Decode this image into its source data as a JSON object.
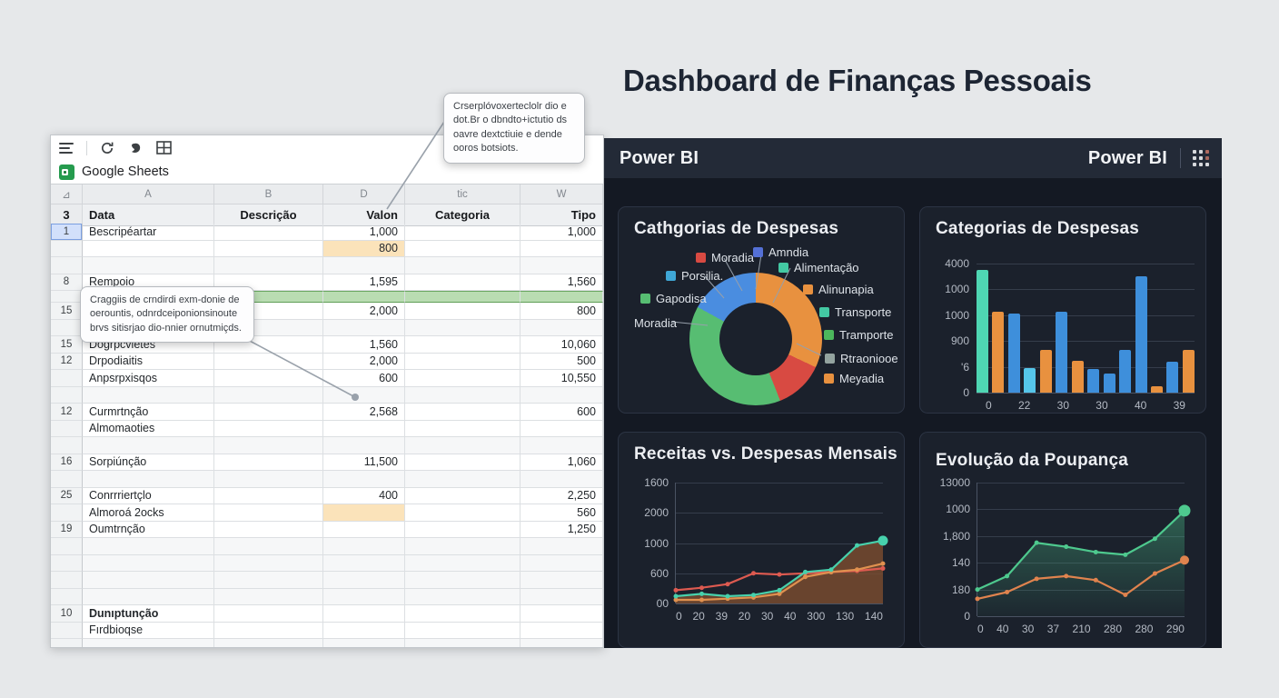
{
  "page": {
    "title": "Dashboard de Finanças Pessoais"
  },
  "sheet": {
    "brand": "Google Sheets",
    "column_letters": [
      "⊿",
      "A",
      "B",
      "D",
      "tic",
      "W"
    ],
    "header_row": {
      "num": "3",
      "cells": [
        "Data",
        "Descrição",
        "Valon",
        "Categoria",
        "Tipo"
      ]
    },
    "rows": [
      {
        "n": "1",
        "a": "Bescripéartar",
        "v": "1,000",
        "t": "1,000",
        "sel": true
      },
      {
        "v": "800",
        "vo": true
      },
      {},
      {
        "n": "8",
        "a": "Rempoio",
        "v": "1,595",
        "t": "1,560"
      },
      {
        "g": true
      },
      {
        "n": "15",
        "a": "",
        "v": "2,000",
        "t": "800"
      },
      {},
      {
        "n": "15",
        "a": "Dogrpcvietes",
        "v": "1,560",
        "t": "10,060"
      },
      {
        "n": "12",
        "a": "Drpodiaitis",
        "v": "2,000",
        "t": "500"
      },
      {
        "a": "Anpsrpxisqos",
        "v": "600",
        "t": "10,550"
      },
      {},
      {
        "n": "12",
        "a": "Curmrtnção",
        "v": "2,568",
        "t": "600"
      },
      {
        "a": "Almomaoties"
      },
      {},
      {
        "n": "16",
        "a": "Sorpiúnção",
        "v": "11,500",
        "t": "1,060"
      },
      {},
      {
        "n": "25",
        "a": "Conrrriertçlo",
        "v": "400",
        "t": "2,250"
      },
      {
        "a": "Almoroá 2ocks",
        "vo": true,
        "t": "560"
      },
      {
        "n": "19",
        "a": "Oumtrnção",
        "t": "1,250"
      },
      {},
      {},
      {},
      {},
      {
        "n": "10",
        "a": "Dunıptunção",
        "b": true
      },
      {
        "a": "Fırdbioqse"
      },
      {}
    ],
    "tooltips": {
      "top": "Crserplóvoxerteclolr dio e dot.Br o dbndto+ictutio ds oavre dextctiuie e dende ooros botsiots.",
      "middle": "Craggiis de crndirdi exm-donie de oerountis, odnrdceiponionsinoute brvs sitisrjao dio-nnier ornutmiçds."
    }
  },
  "powerbi": {
    "header": {
      "left_brand": "Power BI",
      "right_brand": "Power BI"
    }
  },
  "chart_data": [
    {
      "type": "pie",
      "donut": true,
      "title": "Cathgorias de Despesas",
      "segments": [
        {
          "label": "Alinunapia",
          "value": 32,
          "color": "#e8913f"
        },
        {
          "label": "Moradia",
          "value": 12,
          "color": "#d84a42"
        },
        {
          "label": "Gapodisa",
          "value": 39,
          "color": "#57bd72"
        },
        {
          "label": "Porsilia",
          "value": 17,
          "color": "#4a8de0"
        }
      ],
      "legend": [
        {
          "label": "Moradia",
          "color": "#d84a42"
        },
        {
          "label": "Amndia",
          "color": "#5470d6"
        },
        {
          "label": "Porsilia.",
          "color": "#3fa7d6"
        },
        {
          "label": "Alimentação",
          "color": "#43c9a3"
        },
        {
          "label": "Gapodisa",
          "color": "#57bd72"
        },
        {
          "label": "Alinunapia",
          "color": "#e8913f"
        },
        {
          "label": "Transporte",
          "color": "#43c9a3"
        },
        {
          "label": "Moradia",
          "color": ""
        },
        {
          "label": "Tramporte",
          "color": "#4cb85c"
        },
        {
          "label": "Rtraoniooe",
          "color": "#93a39f"
        },
        {
          "label": "Meyadia",
          "color": "#e8913f"
        }
      ]
    },
    {
      "type": "bar",
      "title": "Categorias de Despesas",
      "yticks": [
        "4000",
        "1000",
        "1000",
        "900",
        "'6",
        "0"
      ],
      "xticks": [
        "0",
        "22",
        "30",
        "30",
        "40",
        "39"
      ],
      "bars": [
        {
          "height_pct": 95,
          "color": "#4fd6b3"
        },
        {
          "height_pct": 63,
          "color": "#e8913f"
        },
        {
          "height_pct": 61,
          "color": "#3e8fdb"
        },
        {
          "height_pct": 19,
          "color": "#55c6ea"
        },
        {
          "height_pct": 33,
          "color": "#e8913f"
        },
        {
          "height_pct": 63,
          "color": "#3e8fdb"
        },
        {
          "height_pct": 25,
          "color": "#e8913f"
        },
        {
          "height_pct": 18,
          "color": "#3e8fdb"
        },
        {
          "height_pct": 15,
          "color": "#3e8fdb"
        },
        {
          "height_pct": 33,
          "color": "#3e8fdb"
        },
        {
          "height_pct": 90,
          "color": "#3e8fdb"
        },
        {
          "height_pct": 5,
          "color": "#e8913f"
        },
        {
          "height_pct": 24,
          "color": "#3e8fdb"
        },
        {
          "height_pct": 33,
          "color": "#e8913f"
        }
      ]
    },
    {
      "type": "line",
      "title": "Receitas vs. Despesas Mensais",
      "yticks": [
        "1600",
        "2000",
        "1000",
        "600",
        "00"
      ],
      "xticks": [
        "0",
        "20",
        "39",
        "20",
        "30",
        "40",
        "300",
        "130",
        "140"
      ],
      "series": [
        {
          "name": "despesas-vermelha",
          "color": "#dd5a50",
          "values_pct": [
            11,
            13,
            16,
            25,
            24,
            25,
            26,
            27,
            29
          ]
        },
        {
          "name": "linha-laranja",
          "color": "#e0914f",
          "values_pct": [
            3,
            3,
            4,
            5,
            8,
            22,
            26,
            28,
            33
          ]
        },
        {
          "name": "receitas-verde",
          "color": "#47d1ac",
          "values_pct": [
            6,
            8,
            6,
            7,
            11,
            26,
            28,
            48,
            52
          ],
          "area": "#7d4e30",
          "area_opacity": 0.8,
          "end_dot": 5.5
        }
      ]
    },
    {
      "type": "line",
      "title": "Evolução da Poupança",
      "yticks": [
        "13000",
        "1000",
        "1,800",
        "140",
        "180",
        "0"
      ],
      "xticks": [
        "0",
        "40",
        "30",
        "37",
        "210",
        "280",
        "280",
        "290"
      ],
      "series": [
        {
          "name": "linha-laranja",
          "color": "#e0834e",
          "values_pct": [
            13,
            18,
            28,
            30,
            27,
            16,
            32,
            42
          ],
          "end_dot": 5
        },
        {
          "name": "poupanca-verde",
          "color": "#4ec98e",
          "values_pct": [
            20,
            30,
            55,
            52,
            48,
            46,
            58,
            79
          ],
          "area": "#4ec98e",
          "area_gradient": true,
          "end_dot": 6.5
        }
      ]
    }
  ]
}
